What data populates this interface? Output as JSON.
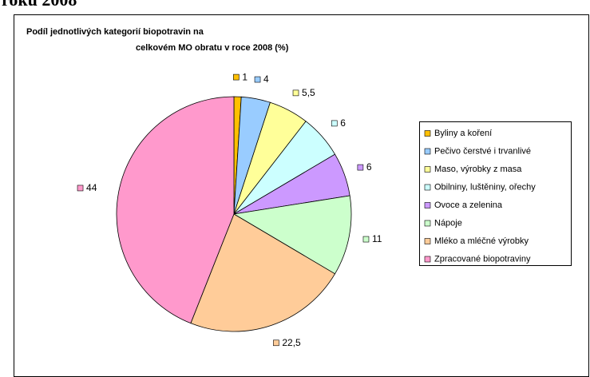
{
  "heading": "roku 2008",
  "chart_data": {
    "type": "pie",
    "title_lines": [
      "Podíl jednotlivých kategorií biopotravin na",
      "celkovém MO obratu v roce 2008 (%)"
    ],
    "categories": [
      "Byliny a koření",
      "Pečivo čerstvé i trvanlivé",
      "Maso, výrobky z masa",
      "Obilniny, luštěniny, ořechy",
      "Ovoce a zelenina",
      "Nápoje",
      "Mléko a mléčné výrobky",
      "Zpracované biopotraviny"
    ],
    "values": [
      1,
      4,
      5.5,
      6,
      6,
      11,
      22.5,
      44
    ],
    "value_labels": [
      "1",
      "4",
      "5,5",
      "6",
      "6",
      "11",
      "22,5",
      "44"
    ],
    "colors": [
      "#ffc000",
      "#99ccff",
      "#ffff99",
      "#ccffff",
      "#cc99ff",
      "#ccffcc",
      "#ffcc99",
      "#ff99cc"
    ],
    "legend": "right"
  }
}
